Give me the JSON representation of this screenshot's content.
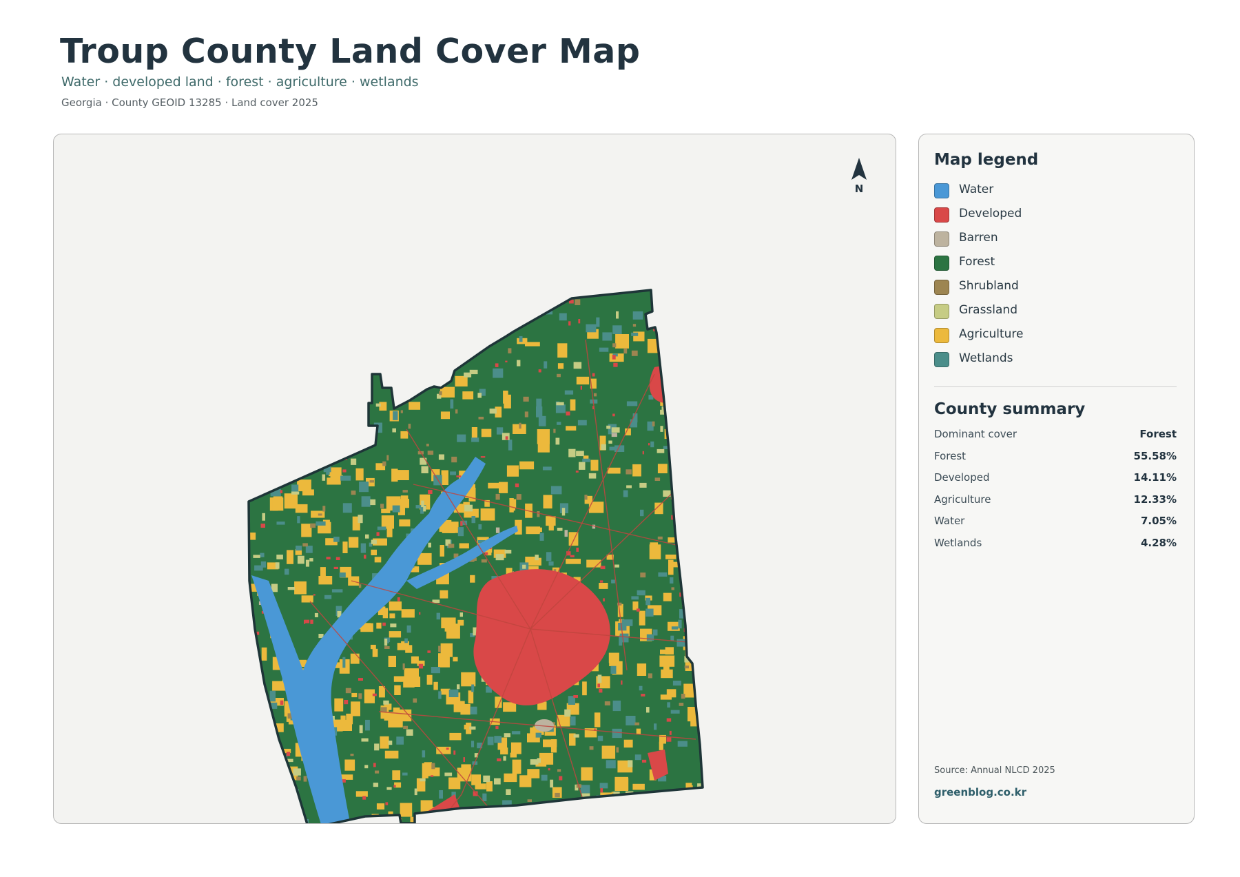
{
  "header": {
    "title": "Troup County Land Cover Map",
    "subtitle": "Water · developed land · forest · agriculture · wetlands",
    "meta": "Georgia · County GEOID 13285 · Land cover 2025"
  },
  "map": {
    "north_label": "N",
    "colors": {
      "water": "#4a98d6",
      "developed": "#d94848",
      "barren": "#bdb39f",
      "forest": "#2c7442",
      "shrubland": "#9d8551",
      "grassland": "#c6cc84",
      "agriculture": "#ecb93c",
      "wetlands": "#4b8e8a",
      "boundary": "#1e3538",
      "roads": "#c0453e"
    }
  },
  "legend": {
    "title": "Map legend",
    "items": [
      {
        "label": "Water",
        "color": "#4a98d6"
      },
      {
        "label": "Developed",
        "color": "#d94848"
      },
      {
        "label": "Barren",
        "color": "#bdb39f"
      },
      {
        "label": "Forest",
        "color": "#2c7442"
      },
      {
        "label": "Shrubland",
        "color": "#9d8551"
      },
      {
        "label": "Grassland",
        "color": "#c6cc84"
      },
      {
        "label": "Agriculture",
        "color": "#ecb93c"
      },
      {
        "label": "Wetlands",
        "color": "#4b8e8a"
      }
    ]
  },
  "summary": {
    "title": "County summary",
    "rows": [
      {
        "label": "Dominant cover",
        "value": "Forest"
      },
      {
        "label": "Forest",
        "value": "55.58%"
      },
      {
        "label": "Developed",
        "value": "14.11%"
      },
      {
        "label": "Agriculture",
        "value": "12.33%"
      },
      {
        "label": "Water",
        "value": "7.05%"
      },
      {
        "label": "Wetlands",
        "value": "4.28%"
      }
    ]
  },
  "footer": {
    "source": "Source: Annual NLCD 2025",
    "brand": "greenblog.co.kr"
  }
}
